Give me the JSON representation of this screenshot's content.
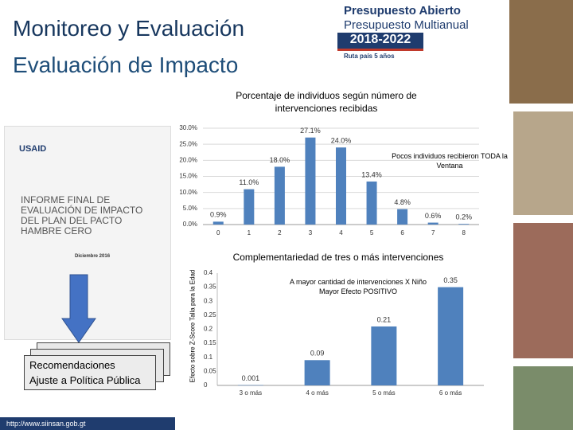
{
  "title": "Monitoreo y Evaluación",
  "subtitle": "Evaluación de Impacto",
  "logo": {
    "line1": "Presupuesto Abierto",
    "line2": "Presupuesto Multianual",
    "years": "2018-2022",
    "tagline": "Ruta país 5 años"
  },
  "document": {
    "agency": "USAID",
    "title": "INFORME FINAL DE EVALUACIÓN DE IMPACTO DEL PLAN DEL PACTO HAMBRE CERO",
    "date": "Diciembre 2016"
  },
  "boxes": {
    "line1": "Recomendaciones",
    "line2": "Ajuste a Política Pública"
  },
  "url": "http://www.siinsan.gob.gt",
  "chart_data": [
    {
      "type": "bar",
      "title": "Porcentaje de individuos según número de intervenciones recibidas",
      "annotation": "Pocos individuos recibieron TODA la Ventana",
      "categories": [
        "0",
        "1",
        "2",
        "3",
        "4",
        "5",
        "6",
        "7",
        "8"
      ],
      "values": [
        0.9,
        11.0,
        18.0,
        27.1,
        24.0,
        13.4,
        4.8,
        0.6,
        0.2
      ],
      "value_labels": [
        "0.9%",
        "11.0%",
        "18.0%",
        "27.1%",
        "24.0%",
        "13.4%",
        "4.8%",
        "0.6%",
        "0.2%"
      ],
      "color": "#4f81bd",
      "ylim": [
        0,
        30
      ],
      "yticks": [
        {
          "value": 0,
          "label": "0.0%"
        },
        {
          "value": 5,
          "label": "5.0%"
        },
        {
          "value": 10,
          "label": "10.0%"
        },
        {
          "value": 15,
          "label": "15.0%"
        },
        {
          "value": 20,
          "label": "20.0%"
        },
        {
          "value": 25,
          "label": "25.0%"
        },
        {
          "value": 30,
          "label": "30.0%"
        }
      ],
      "grid": true
    },
    {
      "type": "bar",
      "title": "Complementariedad de tres o más intervenciones",
      "y_label": "Efecto sobre Z-Score Talla para la Edad",
      "annotation": "A mayor cantidad de intervenciones X Niño Mayor Efecto POSITIVO",
      "categories": [
        "3 o más",
        "4 o más",
        "5 o más",
        "6 o más"
      ],
      "values": [
        0.001,
        0.09,
        0.21,
        0.35
      ],
      "color": "#4f81bd",
      "ylim": [
        0,
        0.4
      ],
      "yticks": [
        0,
        0.05,
        0.1,
        0.15,
        0.2,
        0.25,
        0.3,
        0.35,
        0.4
      ],
      "grid": false
    }
  ]
}
